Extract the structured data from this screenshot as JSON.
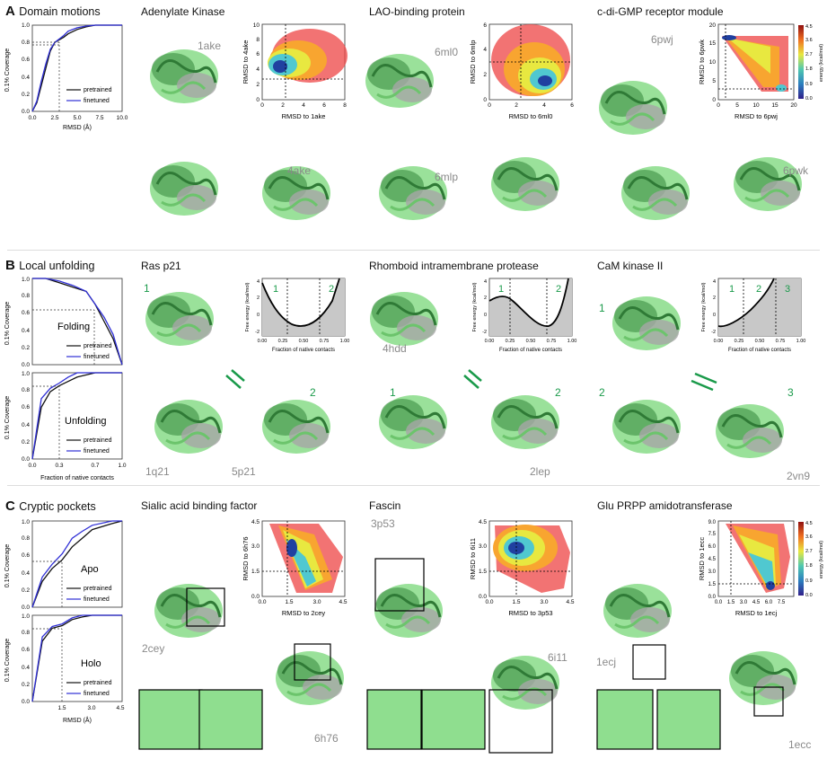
{
  "panels": [
    {
      "letter": "A",
      "title": "Domain motions"
    },
    {
      "letter": "B",
      "title": "Local unfolding"
    },
    {
      "letter": "C",
      "title": "Cryptic pockets"
    }
  ],
  "proteins": {
    "a1": "Adenylate Kinase",
    "a2": "LAO-binding protein",
    "a3": "c-di-GMP receptor  module",
    "b1": "Ras p21",
    "b2": "Rhomboid intramembrane protease",
    "b3": "CaM kinase II",
    "c1": "Sialic acid binding factor",
    "c2": "Fascin",
    "c3": "Glu PRPP amidotransferase"
  },
  "pdb": {
    "a1_top": "1ake",
    "a1_bot": "4ake",
    "a2_top": "6ml0",
    "a2_bot": "6mlp",
    "a3_top": "6pwj",
    "a3_bot": "6pwk",
    "b1_bl": "1q21",
    "b1_br": "5p21",
    "b2_top": "4hdd",
    "b2_br": "2lep",
    "b3_br": "2vn9",
    "c1_l": "2cey",
    "c1_r": "6h76",
    "c2_l": "3p53",
    "c2_r": "6i11",
    "c3_l": "1ecj",
    "c3_r": "1ecc"
  },
  "state_labels": {
    "s1": "1",
    "s2": "2",
    "s3": "3"
  },
  "coverage_plots": {
    "ylabel": "0.1% Coverage",
    "legend": [
      "pretrained",
      "finetuned"
    ],
    "A": {
      "xlabel": "RMSD (Å)",
      "xticks": [
        "0.0",
        "2.5",
        "5.0",
        "7.5",
        "10.0"
      ],
      "yticks": [
        "0.0",
        "0.2",
        "0.4",
        "0.6",
        "0.8",
        "1.0"
      ]
    },
    "B_fold": {
      "label": "Folding",
      "yticks": [
        "0.0",
        "0.2",
        "0.4",
        "0.6",
        "0.8",
        "1.0"
      ]
    },
    "B_unfold": {
      "label": "Unfolding",
      "xlabel": "Fraction of native contacts",
      "xticks": [
        "0.0",
        "0.3",
        "0.7",
        "1.0"
      ],
      "yticks": [
        "0.0",
        "0.2",
        "0.4",
        "0.6",
        "0.8",
        "1.0"
      ]
    },
    "C_apo": {
      "label": "Apo",
      "yticks": [
        "0.0",
        "0.2",
        "0.4",
        "0.6",
        "0.8",
        "1.0"
      ]
    },
    "C_holo": {
      "label": "Holo",
      "xlabel": "RMSD (Å)",
      "xticks": [
        "1.5",
        "3.0",
        "4.5"
      ],
      "yticks": [
        "0.0",
        "0.2",
        "0.4",
        "0.6",
        "0.8",
        "1.0"
      ]
    }
  },
  "energy_maps": {
    "a1": {
      "xlabel": "RMSD to 1ake",
      "ylabel": "RMSD to 4ake",
      "xticks": [
        "0",
        "2",
        "4",
        "6",
        "8"
      ],
      "yticks": [
        "0",
        "2",
        "4",
        "6",
        "8",
        "10"
      ]
    },
    "a2": {
      "xlabel": "RMSD to 6ml0",
      "ylabel": "RMSD to 6mlp",
      "xticks": [
        "0",
        "2",
        "4",
        "6"
      ],
      "yticks": [
        "0",
        "2",
        "4",
        "6"
      ]
    },
    "a3": {
      "xlabel": "RMSD to 6pwj",
      "ylabel": "RMSD to 6pwk",
      "xticks": [
        "0",
        "5",
        "10",
        "15",
        "20"
      ],
      "yticks": [
        "0",
        "5",
        "10",
        "15",
        "20"
      ],
      "cbar_label": "energy (kcal/mol)",
      "cbar_ticks": [
        "0.0",
        "0.9",
        "1.8",
        "2.7",
        "3.6",
        "4.5"
      ]
    },
    "c1": {
      "xlabel": "RMSD to 2cey",
      "ylabel": "RMSD to 6h76",
      "xticks": [
        "0.0",
        "1.5",
        "3.0",
        "4.5"
      ],
      "yticks": [
        "0.0",
        "1.5",
        "3.0",
        "4.5"
      ]
    },
    "c2": {
      "xlabel": "RMSD to 3p53",
      "ylabel": "RMSD to 6i11",
      "xticks": [
        "0.0",
        "1.5",
        "3.0",
        "4.5"
      ],
      "yticks": [
        "0.0",
        "1.5",
        "3.0",
        "4.5"
      ]
    },
    "c3": {
      "xlabel": "RMSD to 1ecj",
      "ylabel": "RMSD to 1ecc",
      "xticks": [
        "0.0",
        "1.5",
        "3.0",
        "4.5",
        "6.0",
        "7.5",
        "9.0"
      ],
      "yticks": [
        "0.0",
        "1.5",
        "3.0",
        "4.5",
        "6.0",
        "7.5",
        "9.0"
      ],
      "cbar_label": "energy (kcal/mol)",
      "cbar_ticks": [
        "0.0",
        "0.9",
        "1.8",
        "2.7",
        "3.6",
        "4.5"
      ]
    }
  },
  "fe_plots": {
    "ylabel": "Free energy (kcal/mol)",
    "xlabel": "Fraction of native contacts",
    "xticks": [
      "0.00",
      "0.25",
      "0.50",
      "0.75",
      "1.00"
    ],
    "yticks": [
      "-2",
      "0",
      "2",
      "4"
    ]
  },
  "colors": {
    "pretrained": "#111111",
    "finetuned": "#2f2fd6",
    "protein_green": "#7ed67e",
    "protein_dark": "#3f8f45",
    "protein_grey": "#9a9a9a",
    "arrow": "#1a9a4a"
  },
  "chart_data": [
    {
      "type": "line",
      "name": "A coverage",
      "xlabel": "RMSD (Å)",
      "ylabel": "0.1% Coverage",
      "xlim": [
        0,
        10
      ],
      "ylim": [
        0,
        1
      ],
      "series": [
        {
          "name": "pretrained",
          "x": [
            0,
            0.5,
            1,
            1.5,
            2,
            2.5,
            3,
            3.5,
            4,
            5,
            6,
            7,
            10
          ],
          "y": [
            0,
            0.1,
            0.3,
            0.5,
            0.7,
            0.8,
            0.83,
            0.86,
            0.9,
            0.95,
            0.98,
            1,
            1
          ]
        },
        {
          "name": "finetuned",
          "x": [
            0,
            0.5,
            1,
            1.5,
            2,
            2.5,
            3,
            3.5,
            4,
            5,
            6,
            7,
            10
          ],
          "y": [
            0,
            0.12,
            0.35,
            0.55,
            0.72,
            0.8,
            0.84,
            0.88,
            0.93,
            0.97,
            0.99,
            1,
            1
          ]
        }
      ]
    },
    {
      "type": "line",
      "name": "B folding coverage",
      "ylabel": "0.1% Coverage",
      "xlim": [
        0,
        1
      ],
      "ylim": [
        0,
        1
      ],
      "series": [
        {
          "name": "pretrained",
          "x": [
            0,
            0.15,
            0.3,
            0.45,
            0.6,
            0.7,
            0.8,
            0.9,
            1
          ],
          "y": [
            1,
            1,
            0.95,
            0.9,
            0.85,
            0.7,
            0.5,
            0.3,
            0
          ]
        },
        {
          "name": "finetuned",
          "x": [
            0,
            0.15,
            0.3,
            0.45,
            0.6,
            0.7,
            0.8,
            0.9,
            1
          ],
          "y": [
            1,
            1,
            0.97,
            0.92,
            0.85,
            0.7,
            0.55,
            0.35,
            0
          ]
        }
      ]
    },
    {
      "type": "line",
      "name": "B unfolding coverage",
      "xlabel": "Fraction of native contacts",
      "ylabel": "0.1% Coverage",
      "xlim": [
        0,
        1
      ],
      "ylim": [
        0,
        1
      ],
      "series": [
        {
          "name": "pretrained",
          "x": [
            0,
            0.1,
            0.2,
            0.3,
            0.4,
            0.5,
            0.7,
            1
          ],
          "y": [
            0,
            0.6,
            0.78,
            0.85,
            0.9,
            0.95,
            1,
            1
          ]
        },
        {
          "name": "finetuned",
          "x": [
            0,
            0.1,
            0.2,
            0.3,
            0.4,
            0.5,
            0.7,
            1
          ],
          "y": [
            0,
            0.7,
            0.82,
            0.88,
            0.95,
            1,
            1,
            1
          ]
        }
      ]
    },
    {
      "type": "line",
      "name": "C apo coverage",
      "ylabel": "0.1% Coverage",
      "xlim": [
        0,
        4.5
      ],
      "ylim": [
        0,
        1
      ],
      "series": [
        {
          "name": "pretrained",
          "x": [
            0,
            0.5,
            1,
            1.5,
            2,
            2.5,
            3,
            4,
            4.5
          ],
          "y": [
            0,
            0.3,
            0.45,
            0.55,
            0.7,
            0.8,
            0.9,
            0.97,
            1
          ]
        },
        {
          "name": "finetuned",
          "x": [
            0,
            0.5,
            1,
            1.5,
            2,
            2.5,
            3,
            4,
            4.5
          ],
          "y": [
            0,
            0.35,
            0.5,
            0.62,
            0.8,
            0.88,
            0.95,
            1,
            1
          ]
        }
      ]
    },
    {
      "type": "line",
      "name": "C holo coverage",
      "xlabel": "RMSD (Å)",
      "ylabel": "0.1% Coverage",
      "xlim": [
        0,
        4.5
      ],
      "ylim": [
        0,
        1
      ],
      "series": [
        {
          "name": "pretrained",
          "x": [
            0,
            0.5,
            1,
            1.5,
            2,
            2.5,
            3,
            4.5
          ],
          "y": [
            0,
            0.7,
            0.85,
            0.88,
            0.95,
            0.98,
            1,
            1
          ]
        },
        {
          "name": "finetuned",
          "x": [
            0,
            0.5,
            1,
            1.5,
            2,
            2.5,
            3,
            4.5
          ],
          "y": [
            0,
            0.75,
            0.87,
            0.9,
            0.97,
            1,
            1,
            1
          ]
        }
      ]
    }
  ]
}
